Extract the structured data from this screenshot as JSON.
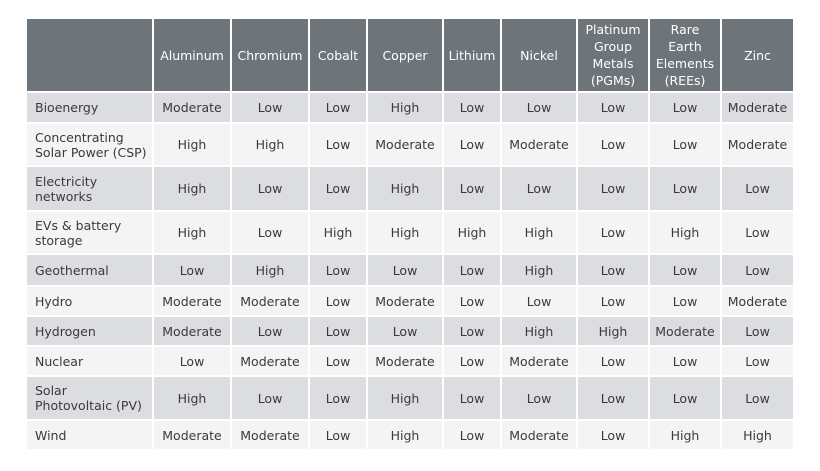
{
  "header": {
    "corner": "",
    "columns": [
      [
        "Aluminum"
      ],
      [
        "Chromium"
      ],
      [
        "Cobalt"
      ],
      [
        "Copper"
      ],
      [
        "Lithium"
      ],
      [
        "Nickel"
      ],
      [
        "Platinum",
        "Group",
        "Metals",
        "(PGMs)"
      ],
      [
        "Rare",
        "Earth",
        "Elements",
        "(REEs)"
      ],
      [
        "Zinc"
      ]
    ]
  },
  "rows": [
    {
      "label": [
        "Bioenergy"
      ],
      "values": [
        "Moderate",
        "Low",
        "Low",
        "High",
        "Low",
        "Low",
        "Low",
        "Low",
        "Moderate"
      ]
    },
    {
      "label": [
        "Concentrating",
        "Solar Power (CSP)"
      ],
      "values": [
        "High",
        "High",
        "Low",
        "Moderate",
        "Low",
        "Moderate",
        "Low",
        "Low",
        "Moderate"
      ]
    },
    {
      "label": [
        "Electricity",
        "networks"
      ],
      "values": [
        "High",
        "Low",
        "Low",
        "High",
        "Low",
        "Low",
        "Low",
        "Low",
        "Low"
      ]
    },
    {
      "label": [
        "EVs & battery",
        "storage"
      ],
      "values": [
        "High",
        "Low",
        "High",
        "High",
        "High",
        "High",
        "Low",
        "High",
        "Low"
      ]
    },
    {
      "label": [
        "Geothermal"
      ],
      "values": [
        "Low",
        "High",
        "Low",
        "Low",
        "Low",
        "High",
        "Low",
        "Low",
        "Low"
      ]
    },
    {
      "label": [
        "Hydro"
      ],
      "values": [
        "Moderate",
        "Moderate",
        "Low",
        "Moderate",
        "Low",
        "Low",
        "Low",
        "Low",
        "Moderate"
      ]
    },
    {
      "label": [
        "Hydrogen"
      ],
      "values": [
        "Moderate",
        "Low",
        "Low",
        "Low",
        "Low",
        "High",
        "High",
        "Moderate",
        "Low"
      ]
    },
    {
      "label": [
        "Nuclear"
      ],
      "values": [
        "Low",
        "Moderate",
        "Low",
        "Moderate",
        "Low",
        "Moderate",
        "Low",
        "Low",
        "Low"
      ]
    },
    {
      "label": [
        "Solar",
        "Photovoltaic (PV)"
      ],
      "values": [
        "High",
        "Low",
        "Low",
        "High",
        "Low",
        "Low",
        "Low",
        "Low",
        "Low"
      ]
    },
    {
      "label": [
        "Wind"
      ],
      "values": [
        "Moderate",
        "Moderate",
        "Low",
        "High",
        "Low",
        "Moderate",
        "Low",
        "High",
        "High"
      ]
    }
  ],
  "colors": {
    "header_bg": "#6d747a",
    "row_shade": "#dcdde0",
    "row_plain": "#f4f4f5"
  }
}
